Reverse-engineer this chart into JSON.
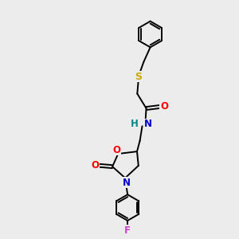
{
  "background_color": "#ececec",
  "bond_color": "#000000",
  "atom_colors": {
    "O": "#ff0000",
    "N": "#0000cd",
    "S": "#ccaa00",
    "F": "#cc44cc",
    "HN_H": "#008888",
    "HN_N": "#0000cd"
  },
  "font_size": 8.5,
  "linewidth": 1.4
}
